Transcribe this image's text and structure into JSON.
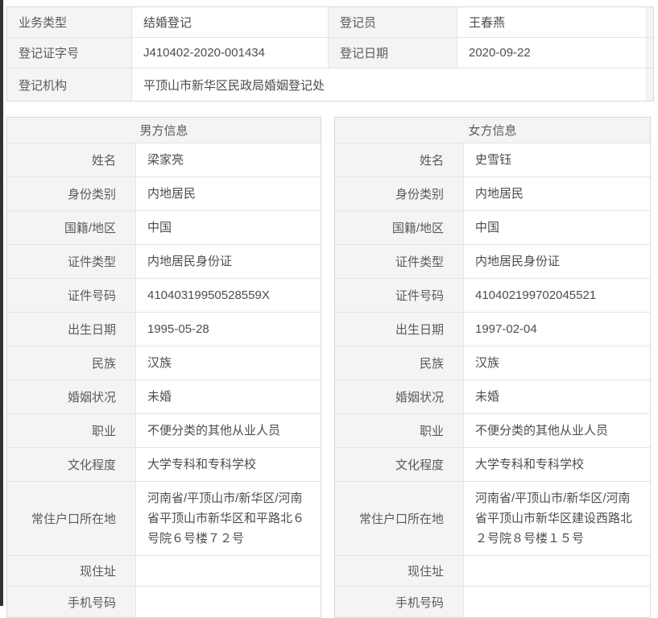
{
  "colors": {
    "label_bg": "#f4f4f4",
    "border": "#e4e4e4",
    "outer_border": "#d9d9d9",
    "label_text": "#5a5a5a",
    "value_text": "#4d4d4d",
    "edge_strip": "#333333"
  },
  "registration": {
    "business_type_label": "业务类型",
    "business_type_value": "结婚登记",
    "registrar_label": "登记员",
    "registrar_value": "王春燕",
    "cert_no_label": "登记证字号",
    "cert_no_value": "J410402-2020-001434",
    "reg_date_label": "登记日期",
    "reg_date_value": "2020-09-22",
    "agency_label": "登记机构",
    "agency_value": "平顶山市新华区民政局婚姻登记处"
  },
  "male": {
    "title": "男方信息",
    "fields": [
      {
        "label": "姓名",
        "value": "梁家亮"
      },
      {
        "label": "身份类别",
        "value": "内地居民"
      },
      {
        "label": "国籍/地区",
        "value": "中国"
      },
      {
        "label": "证件类型",
        "value": "内地居民身份证"
      },
      {
        "label": "证件号码",
        "value": "41040319950528559X"
      },
      {
        "label": "出生日期",
        "value": "1995-05-28"
      },
      {
        "label": "民族",
        "value": "汉族"
      },
      {
        "label": "婚姻状况",
        "value": "未婚"
      },
      {
        "label": "职业",
        "value": "不便分类的其他从业人员"
      },
      {
        "label": "文化程度",
        "value": "大学专科和专科学校"
      },
      {
        "label": "常住户口所在地",
        "value": "河南省/平顶山市/新华区/河南省平顶山市新华区和平路北６号院６号楼７２号"
      },
      {
        "label": "现住址",
        "value": ""
      },
      {
        "label": "手机号码",
        "value": ""
      }
    ]
  },
  "female": {
    "title": "女方信息",
    "fields": [
      {
        "label": "姓名",
        "value": "史雪钰"
      },
      {
        "label": "身份类别",
        "value": "内地居民"
      },
      {
        "label": "国籍/地区",
        "value": "中国"
      },
      {
        "label": "证件类型",
        "value": "内地居民身份证"
      },
      {
        "label": "证件号码",
        "value": "410402199702045521"
      },
      {
        "label": "出生日期",
        "value": "1997-02-04"
      },
      {
        "label": "民族",
        "value": "汉族"
      },
      {
        "label": "婚姻状况",
        "value": "未婚"
      },
      {
        "label": "职业",
        "value": "不便分类的其他从业人员"
      },
      {
        "label": "文化程度",
        "value": "大学专科和专科学校"
      },
      {
        "label": "常住户口所在地",
        "value": "河南省/平顶山市/新华区/河南省平顶山市新华区建设西路北２号院８号楼１５号"
      },
      {
        "label": "现住址",
        "value": ""
      },
      {
        "label": "手机号码",
        "value": ""
      }
    ]
  }
}
